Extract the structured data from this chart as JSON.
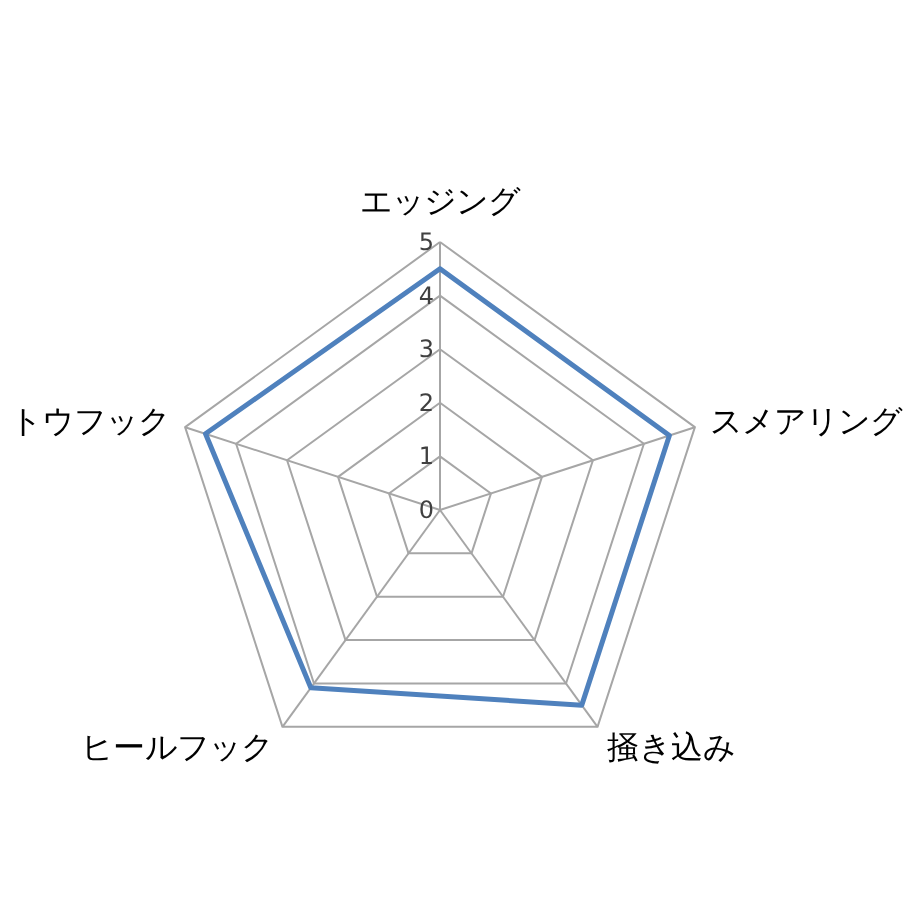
{
  "chart_data": {
    "type": "radar",
    "categories": [
      "エッジング",
      "スメアリング",
      "掻き込み",
      "ヒールフック",
      "トウフック"
    ],
    "series": [
      {
        "color": "#4f81bd",
        "values": [
          4.5,
          4.5,
          4.5,
          4.1,
          4.6
        ]
      }
    ],
    "ylim": [
      0,
      5
    ],
    "yticks": [
      0,
      1,
      2,
      3,
      4,
      5
    ],
    "grid": true
  }
}
